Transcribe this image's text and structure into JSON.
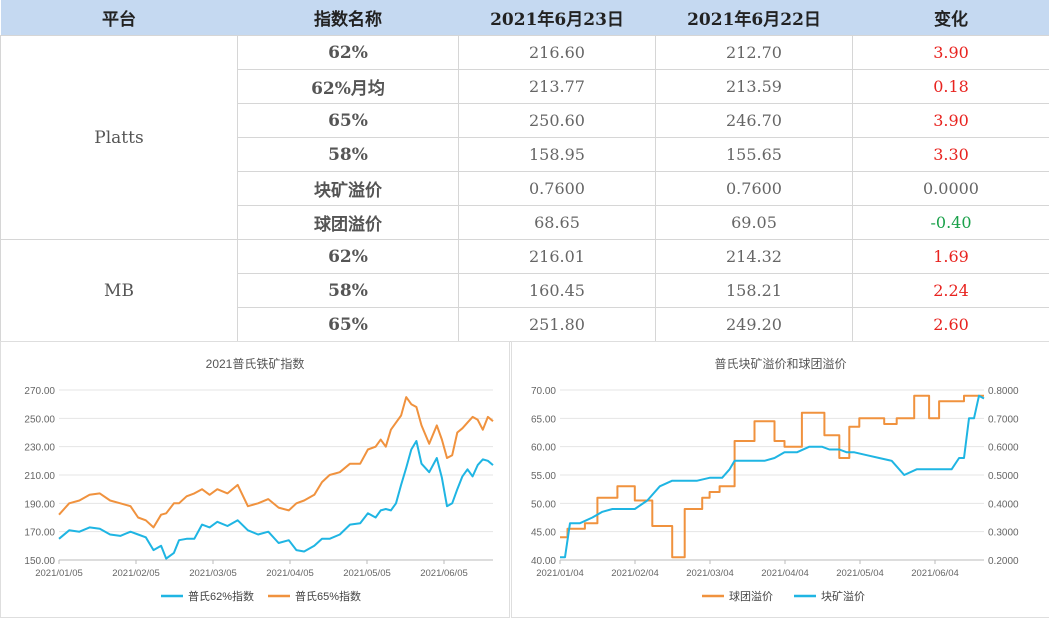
{
  "table": {
    "headers": [
      "平台",
      "指数名称",
      "2021年6月23日",
      "2021年6月22日",
      "变化"
    ],
    "groups": [
      {
        "source": "Platts",
        "rows": [
          {
            "name": "62%",
            "d1": "216.60",
            "d2": "212.70",
            "change": "3.90",
            "sign": "pos"
          },
          {
            "name": "62%月均",
            "d1": "213.77",
            "d2": "213.59",
            "change": "0.18",
            "sign": "pos"
          },
          {
            "name": "65%",
            "d1": "250.60",
            "d2": "246.70",
            "change": "3.90",
            "sign": "pos"
          },
          {
            "name": "58%",
            "d1": "158.95",
            "d2": "155.65",
            "change": "3.30",
            "sign": "pos"
          },
          {
            "name": "块矿溢价",
            "d1": "0.7600",
            "d2": "0.7600",
            "change": "0.0000",
            "sign": "zero"
          },
          {
            "name": "球团溢价",
            "d1": "68.65",
            "d2": "69.05",
            "change": "-0.40",
            "sign": "neg"
          }
        ]
      },
      {
        "source": "MB",
        "rows": [
          {
            "name": "62%",
            "d1": "216.01",
            "d2": "214.32",
            "change": "1.69",
            "sign": "pos"
          },
          {
            "name": "58%",
            "d1": "160.45",
            "d2": "158.21",
            "change": "2.24",
            "sign": "pos"
          },
          {
            "name": "65%",
            "d1": "251.80",
            "d2": "249.20",
            "change": "2.60",
            "sign": "pos"
          }
        ]
      }
    ],
    "colors": {
      "header_bg": "#c5d9f1",
      "positive": "#e8231f",
      "negative": "#1aa14a"
    }
  },
  "chart_data": [
    {
      "type": "line",
      "title": "2021普氏铁矿指数",
      "xlabel": "",
      "ylabel": "",
      "x_tick_labels": [
        "2021/01/05",
        "2021/02/05",
        "2021/03/05",
        "2021/04/05",
        "2021/05/05",
        "2021/06/05"
      ],
      "y_tick_labels": [
        "150.00",
        "170.00",
        "190.00",
        "210.00",
        "230.00",
        "250.00",
        "270.00"
      ],
      "ylim": [
        150,
        270
      ],
      "grid": true,
      "legend": "bottom",
      "x_day_range": [
        0,
        170
      ],
      "series": [
        {
          "name": "普氏62%指数",
          "color": "#1fb5e3",
          "x": [
            0,
            4,
            8,
            12,
            16,
            20,
            24,
            28,
            31,
            34,
            37,
            40,
            42,
            45,
            47,
            50,
            53,
            56,
            59,
            62,
            66,
            70,
            74,
            78,
            82,
            86,
            90,
            93,
            96,
            100,
            103,
            106,
            110,
            114,
            118,
            121,
            124,
            126,
            128,
            130,
            132,
            134,
            136,
            138,
            140,
            142,
            145,
            148,
            150,
            152,
            154,
            156,
            158,
            160,
            162,
            164,
            166,
            168,
            170
          ],
          "y": [
            165,
            171,
            170,
            173,
            172,
            168,
            167,
            170,
            168,
            166,
            157,
            160,
            151,
            155,
            164,
            165,
            165,
            175,
            173,
            177,
            174,
            178,
            171,
            168,
            170,
            162,
            164,
            157,
            156,
            160,
            165,
            165,
            168,
            175,
            176,
            183,
            180,
            185,
            186,
            185,
            190,
            203,
            215,
            228,
            234,
            218,
            212,
            222,
            208,
            188,
            190,
            200,
            209,
            214,
            209,
            217,
            221,
            220,
            217
          ]
        },
        {
          "name": "普氏65%指数",
          "color": "#f0923e",
          "x": [
            0,
            4,
            8,
            12,
            16,
            20,
            24,
            28,
            31,
            34,
            37,
            40,
            42,
            45,
            47,
            50,
            53,
            56,
            59,
            62,
            66,
            70,
            74,
            78,
            82,
            86,
            90,
            93,
            96,
            100,
            103,
            106,
            110,
            114,
            118,
            121,
            124,
            126,
            128,
            130,
            132,
            134,
            136,
            138,
            140,
            142,
            145,
            148,
            150,
            152,
            154,
            156,
            158,
            160,
            162,
            164,
            166,
            168,
            170
          ],
          "y": [
            182,
            190,
            192,
            196,
            197,
            192,
            190,
            188,
            180,
            178,
            173,
            182,
            183,
            190,
            190,
            195,
            197,
            200,
            196,
            200,
            197,
            203,
            188,
            190,
            193,
            187,
            185,
            190,
            192,
            196,
            205,
            210,
            212,
            218,
            218,
            228,
            230,
            235,
            230,
            242,
            247,
            252,
            265,
            260,
            258,
            245,
            232,
            245,
            235,
            222,
            224,
            240,
            243,
            247,
            251,
            249,
            242,
            251,
            248
          ]
        }
      ]
    },
    {
      "type": "line",
      "title": "普氏块矿溢价和球团溢价",
      "xlabel": "",
      "ylabel": "",
      "x_tick_labels": [
        "2021/01/04",
        "2021/02/04",
        "2021/03/04",
        "2021/04/04",
        "2021/05/04",
        "2021/06/04"
      ],
      "y_left_tick_labels": [
        "40.00",
        "45.00",
        "50.00",
        "55.00",
        "60.00",
        "65.00",
        "70.00"
      ],
      "y_right_tick_labels": [
        "0.2000",
        "0.3000",
        "0.4000",
        "0.5000",
        "0.6000",
        "0.7000",
        "0.8000"
      ],
      "ylim_left": [
        40,
        70
      ],
      "ylim_right": [
        0.2,
        0.8
      ],
      "grid": true,
      "legend": "bottom",
      "x_day_range": [
        0,
        170
      ],
      "series": [
        {
          "name": "球团溢价",
          "axis": "left",
          "color": "#f0923e",
          "x": [
            0,
            3,
            3,
            10,
            10,
            15,
            15,
            23,
            23,
            30,
            30,
            37,
            37,
            45,
            45,
            50,
            50,
            57,
            57,
            60,
            60,
            64,
            64,
            70,
            70,
            78,
            78,
            86,
            86,
            90,
            90,
            97,
            97,
            106,
            106,
            112,
            112,
            116,
            116,
            120,
            120,
            130,
            130,
            135,
            135,
            142,
            142,
            148,
            148,
            152,
            152,
            162,
            162,
            168,
            168,
            170
          ],
          "y": [
            44,
            44,
            45.5,
            45.5,
            46.5,
            46.5,
            51,
            51,
            53,
            53,
            50.5,
            50.5,
            46,
            46,
            40.5,
            40.5,
            49,
            49,
            51,
            51,
            52,
            52,
            53,
            53,
            61,
            61,
            64.5,
            64.5,
            61,
            61,
            60,
            60,
            66,
            66,
            62,
            62,
            58,
            58,
            63.5,
            63.5,
            65,
            65,
            64,
            64,
            65,
            65,
            69,
            69,
            65,
            65,
            68,
            68,
            69,
            69,
            69,
            69
          ],
          "note_display": "step"
        },
        {
          "name": "块矿溢价",
          "axis": "right",
          "color": "#1fb5e3",
          "x": [
            0,
            2,
            4,
            8,
            13,
            17,
            21,
            25,
            30,
            35,
            40,
            45,
            47,
            50,
            55,
            60,
            65,
            68,
            70,
            74,
            78,
            82,
            86,
            90,
            92,
            95,
            100,
            105,
            108,
            112,
            115,
            118,
            123,
            128,
            133,
            138,
            143,
            148,
            152,
            155,
            157,
            160,
            162,
            164,
            166,
            168,
            170
          ],
          "y": [
            0.21,
            0.21,
            0.33,
            0.33,
            0.35,
            0.37,
            0.38,
            0.38,
            0.38,
            0.41,
            0.46,
            0.48,
            0.48,
            0.48,
            0.48,
            0.49,
            0.49,
            0.52,
            0.55,
            0.55,
            0.55,
            0.55,
            0.56,
            0.58,
            0.58,
            0.58,
            0.6,
            0.6,
            0.59,
            0.59,
            0.58,
            0.58,
            0.57,
            0.56,
            0.55,
            0.5,
            0.52,
            0.52,
            0.52,
            0.52,
            0.52,
            0.56,
            0.56,
            0.7,
            0.7,
            0.78,
            0.77
          ]
        }
      ]
    }
  ]
}
